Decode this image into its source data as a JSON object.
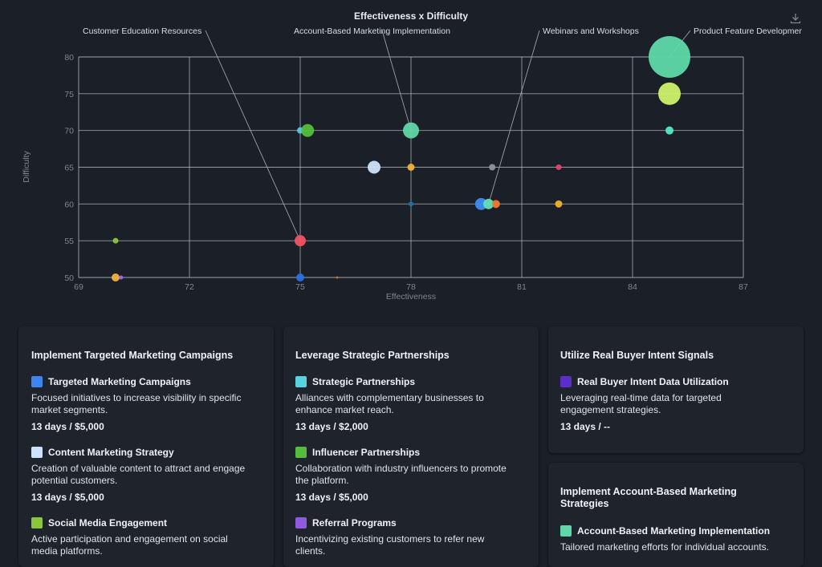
{
  "chart_data": {
    "type": "scatter",
    "title": "Effectiveness x Difficulty",
    "xlabel": "Effectiveness",
    "ylabel": "Difficulty",
    "xlim": [
      69,
      87
    ],
    "ylim": [
      50,
      80
    ],
    "xticks": [
      69,
      72,
      75,
      78,
      81,
      84,
      87
    ],
    "yticks": [
      50,
      55,
      60,
      65,
      70,
      75,
      80
    ],
    "grid": true,
    "points": [
      {
        "x": 85,
        "y": 80,
        "r": 26,
        "color": "#5ed9a8"
      },
      {
        "x": 85,
        "y": 75,
        "r": 14,
        "color": "#cdf26a"
      },
      {
        "x": 85,
        "y": 70,
        "r": 5,
        "color": "#56e8c8"
      },
      {
        "x": 78,
        "y": 70,
        "r": 10,
        "color": "#5fd7a6"
      },
      {
        "x": 75,
        "y": 70,
        "r": 4,
        "color": "#56c8e0"
      },
      {
        "x": 75.2,
        "y": 70,
        "r": 8,
        "color": "#55bd3c"
      },
      {
        "x": 77,
        "y": 65,
        "r": 8,
        "color": "#cde3fb"
      },
      {
        "x": 78,
        "y": 65,
        "r": 4.5,
        "color": "#f0b232"
      },
      {
        "x": 80.2,
        "y": 65,
        "r": 4,
        "color": "#8e949f"
      },
      {
        "x": 82,
        "y": 65,
        "r": 3.5,
        "color": "#e8436e"
      },
      {
        "x": 78,
        "y": 60,
        "r": 3,
        "color": "#1f6fb0"
      },
      {
        "x": 79.9,
        "y": 60,
        "r": 7.5,
        "color": "#3c8df0"
      },
      {
        "x": 80.1,
        "y": 60,
        "r": 6.5,
        "color": "#63e0b8"
      },
      {
        "x": 80.3,
        "y": 60,
        "r": 5,
        "color": "#f07a32"
      },
      {
        "x": 82,
        "y": 60,
        "r": 4.5,
        "color": "#f0b232"
      },
      {
        "x": 70,
        "y": 55,
        "r": 3.5,
        "color": "#8cc63e"
      },
      {
        "x": 75,
        "y": 55,
        "r": 7,
        "color": "#f05361"
      },
      {
        "x": 70,
        "y": 50,
        "r": 5,
        "color": "#f3b33b"
      },
      {
        "x": 70.15,
        "y": 50,
        "r": 2.5,
        "color": "#9b6cf0"
      },
      {
        "x": 75,
        "y": 50,
        "r": 5,
        "color": "#2d6fe6"
      },
      {
        "x": 76,
        "y": 50,
        "r": 1.5,
        "color": "#d07030"
      }
    ],
    "annotations": [
      {
        "text": "Customer Education Resources",
        "x": 75,
        "y": 55
      },
      {
        "text": "Account-Based Marketing Implementation",
        "x": 78,
        "y": 70
      },
      {
        "text": "Webinars and Workshops",
        "x": 80.1,
        "y": 60
      },
      {
        "text": "Product Feature Developmer",
        "x": 85,
        "y": 80
      }
    ]
  },
  "cards": [
    {
      "title": "Implement Targeted Marketing Campaigns",
      "items": [
        {
          "name": "Targeted Marketing Campaigns",
          "color": "#3d86f0",
          "desc_lines": [
            "Focused initiatives to increase visibility in specific",
            "market segments."
          ],
          "meta": "13 days / $5,000"
        },
        {
          "name": "Content Marketing Strategy",
          "color": "#cde3fb",
          "desc_lines": [
            "Creation of valuable content to attract and engage",
            "potential customers."
          ],
          "meta": "13 days / $5,000"
        },
        {
          "name": "Social Media Engagement",
          "color": "#8cc63e",
          "desc_lines": [
            "Active participation and engagement on social",
            "media platforms."
          ],
          "meta": ""
        }
      ]
    },
    {
      "title": "Leverage Strategic Partnerships",
      "items": [
        {
          "name": "Strategic Partnerships",
          "color": "#56d3de",
          "desc_lines": [
            "Alliances with complementary businesses to",
            "enhance market reach."
          ],
          "meta": "13 days / $2,000"
        },
        {
          "name": "Influencer Partnerships",
          "color": "#55bd3c",
          "desc_lines": [
            "Collaboration with industry influencers to promote",
            "the platform."
          ],
          "meta": "13 days / $5,000"
        },
        {
          "name": "Referral Programs",
          "color": "#8f5ae0",
          "desc_lines": [
            "Incentivizing existing customers to refer new",
            "clients."
          ],
          "meta": ""
        }
      ]
    },
    {
      "title": "Utilize Real Buyer Intent Signals",
      "items": [
        {
          "name": "Real Buyer Intent Data Utilization",
          "color": "#5a2fc8",
          "desc_lines": [
            "Leveraging real-time data for targeted",
            "engagement strategies."
          ],
          "meta": "13 days / --"
        }
      ]
    },
    {
      "title_lines": [
        "Implement Account-Based Marketing",
        "Strategies"
      ],
      "items": [
        {
          "name": "Account-Based Marketing Implementation",
          "color": "#5fd7a6",
          "desc_lines": [
            "Tailored marketing efforts for individual accounts."
          ],
          "meta": ""
        }
      ]
    }
  ]
}
